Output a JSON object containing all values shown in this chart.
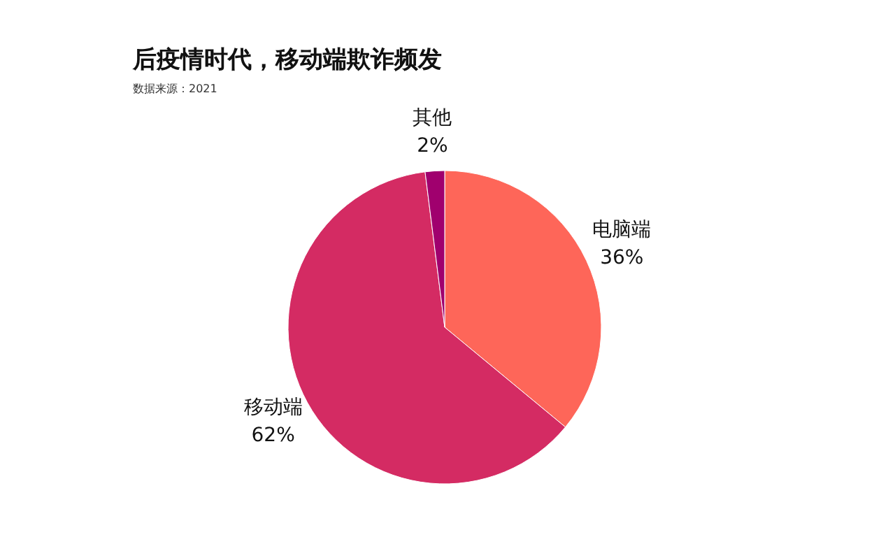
{
  "chart_data": {
    "type": "pie",
    "title": "后疫情时代，移动端欺诈频发",
    "annotations": [
      "数据来源：2021"
    ],
    "categories": [
      "电脑端",
      "移动端",
      "其他"
    ],
    "values": [
      36,
      62,
      2
    ],
    "colors": [
      "#fe6659",
      "#d42b63",
      "#a0006e"
    ],
    "value_labels": [
      "36%",
      "62%",
      "2%"
    ],
    "legend": false
  }
}
